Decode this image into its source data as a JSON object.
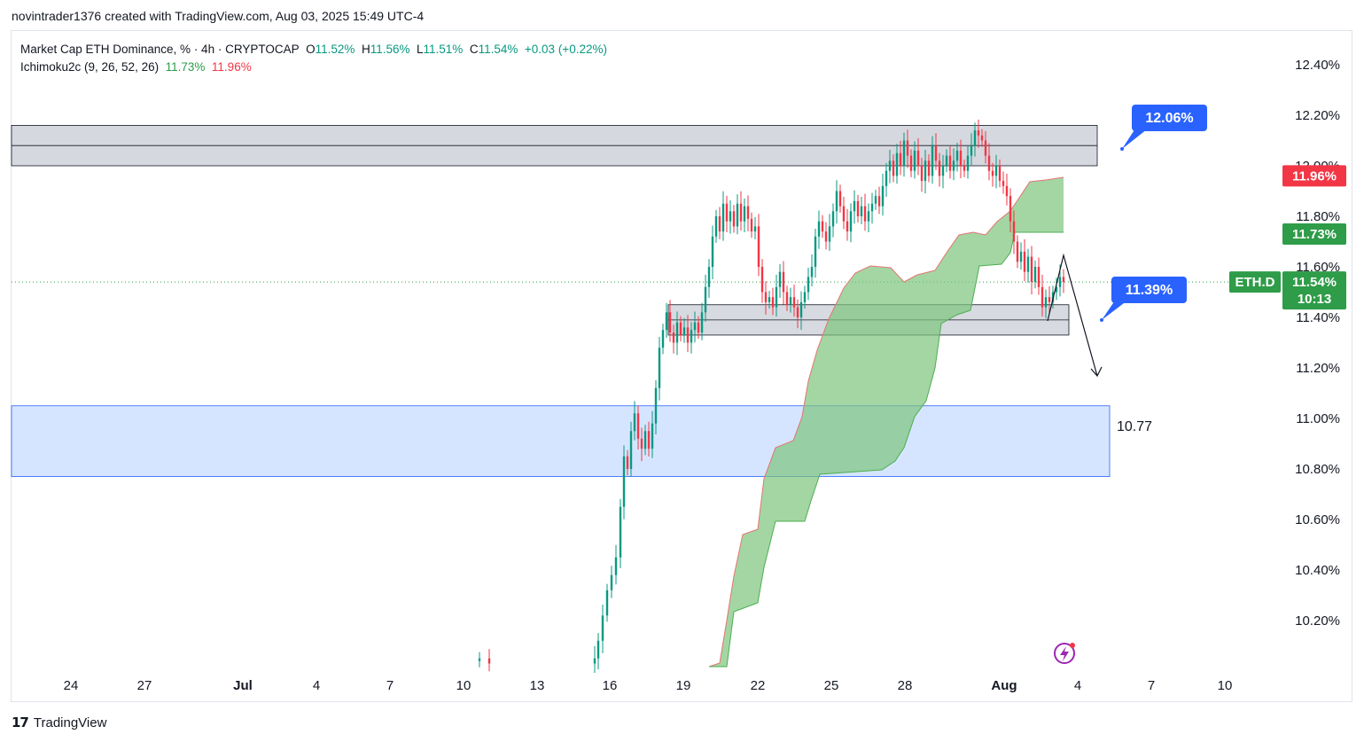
{
  "header": {
    "credit": "novintrader1376 created with TradingView.com, Aug 03, 2025 15:49 UTC-4"
  },
  "legend": {
    "title": "Market Cap ETH Dominance, % · 4h · CRYPTOCAP",
    "o_label": "O",
    "o": "11.52%",
    "h_label": "H",
    "h": "11.56%",
    "l_label": "L",
    "l": "11.51%",
    "c_label": "C",
    "c": "11.54%",
    "change": "+0.03 (+0.22%)",
    "ichimoku_label": "Ichimoku2c (9, 26, 52, 26)",
    "ichimoku_v1": "11.73%",
    "ichimoku_v2": "11.96%"
  },
  "footer": {
    "brand": "TradingView"
  },
  "colors": {
    "up": "#089981",
    "down": "#f23645",
    "cloud": "#7cc47c",
    "zone_gray": "#d1d4dc",
    "zone_blue": "#cfe0ff",
    "label_blue": "#2962ff",
    "price_green": "#2e9c48",
    "price_red": "#f23645"
  },
  "chart_data": {
    "type": "candlestick",
    "y_axis": {
      "ticks": [
        "12.40%",
        "12.20%",
        "12.00%",
        "11.80%",
        "11.60%",
        "11.40%",
        "11.20%",
        "11.00%",
        "10.80%",
        "10.60%",
        "10.40%",
        "10.20%"
      ],
      "min": 10.02,
      "max": 12.5
    },
    "x_axis": {
      "ticks": [
        "24",
        "27",
        "Jul",
        "4",
        "7",
        "10",
        "13",
        "16",
        "19",
        "22",
        "25",
        "28",
        "Aug",
        "4",
        "7",
        "10"
      ]
    },
    "price_tags": [
      {
        "label": "11.96%",
        "value": 11.96,
        "color": "#f23645"
      },
      {
        "label": "11.73%",
        "value": 11.73,
        "color": "#2e9c48"
      },
      {
        "label": "11.54%",
        "sub": "10:13",
        "value": 11.54,
        "color": "#2e9c48",
        "symbol": "ETH.D"
      }
    ],
    "annotations": [
      {
        "text": "12.06%",
        "value": 12.06
      },
      {
        "text": "11.39%",
        "value": 11.39
      },
      {
        "text": "10.77",
        "value": 10.77
      }
    ],
    "zones": [
      {
        "kind": "resistance",
        "low": 12.0,
        "high": 12.16,
        "mid": 12.08
      },
      {
        "kind": "support",
        "low": 11.33,
        "high": 11.45,
        "mid": 11.39
      },
      {
        "kind": "demand",
        "low": 10.77,
        "high": 11.05
      }
    ],
    "last_close": 11.54
  }
}
